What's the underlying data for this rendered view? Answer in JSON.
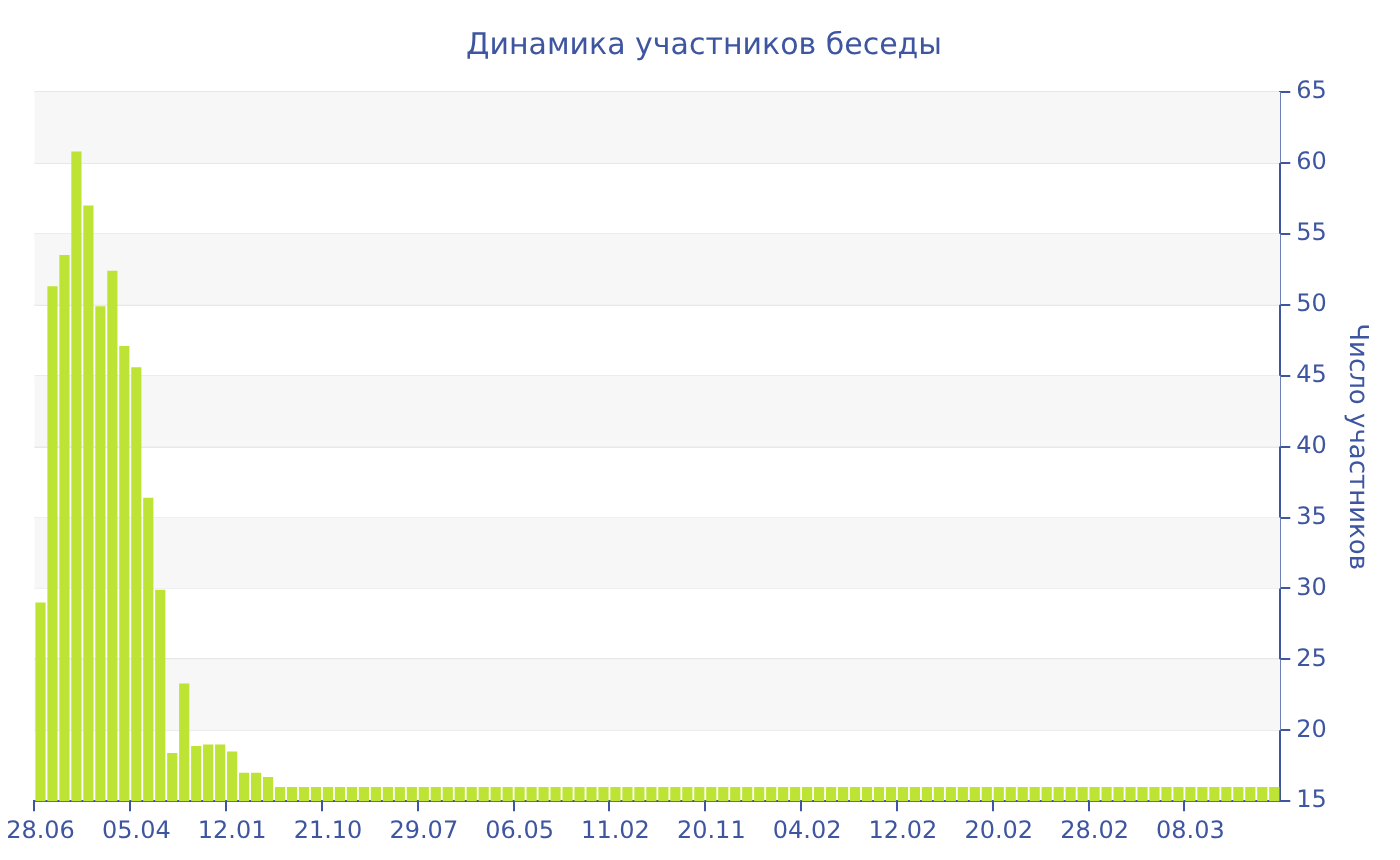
{
  "chart_data": {
    "type": "bar",
    "title": "Динамика участников беседы",
    "ylabel": "Число участников",
    "categories": [
      "28.06",
      null,
      null,
      null,
      null,
      null,
      null,
      null,
      "05.04",
      null,
      null,
      null,
      null,
      null,
      null,
      null,
      "12.01",
      null,
      null,
      null,
      null,
      null,
      null,
      null,
      "21.10",
      null,
      null,
      null,
      null,
      null,
      null,
      null,
      "29.07",
      null,
      null,
      null,
      null,
      null,
      null,
      null,
      "06.05",
      null,
      null,
      null,
      null,
      null,
      null,
      null,
      "11.02",
      null,
      null,
      null,
      null,
      null,
      null,
      null,
      "20.11",
      null,
      null,
      null,
      null,
      null,
      null,
      null,
      "04.02",
      null,
      null,
      null,
      null,
      null,
      null,
      null,
      "12.02",
      null,
      null,
      null,
      null,
      null,
      null,
      null,
      "20.02",
      null,
      null,
      null,
      null,
      null,
      null,
      null,
      "28.02",
      null,
      null,
      null,
      null,
      null,
      null,
      null,
      "08.03",
      null,
      null,
      null,
      null,
      null,
      null,
      null
    ],
    "values": [
      29,
      51.3,
      53.5,
      60.8,
      57,
      49.9,
      52.4,
      47.1,
      45.6,
      36.4,
      29.9,
      18.4,
      23.3,
      18.9,
      19,
      19,
      18.5,
      17,
      17,
      16.7,
      16,
      16,
      16,
      16,
      16,
      16,
      16,
      16,
      16,
      16,
      16,
      16,
      16,
      16,
      16,
      16,
      16,
      16,
      16,
      16,
      16,
      16,
      16,
      16,
      16,
      16,
      16,
      16,
      16,
      16,
      16,
      16,
      16,
      16,
      16,
      16,
      16,
      16,
      16,
      16,
      16,
      16,
      16,
      16,
      16,
      16,
      16,
      16,
      16,
      16,
      16,
      16,
      16,
      16,
      16,
      16,
      16,
      16,
      16,
      16,
      16,
      16,
      16,
      16,
      16,
      16,
      16,
      16,
      16,
      16,
      16,
      16,
      16,
      16,
      16,
      16,
      16,
      16,
      16,
      16,
      16,
      16,
      16,
      16
    ],
    "color": "#bde335",
    "ylim": [
      15,
      65
    ],
    "yticks": [
      15,
      20,
      25,
      30,
      35,
      40,
      45,
      50,
      55,
      60,
      65
    ],
    "grid": "y"
  }
}
